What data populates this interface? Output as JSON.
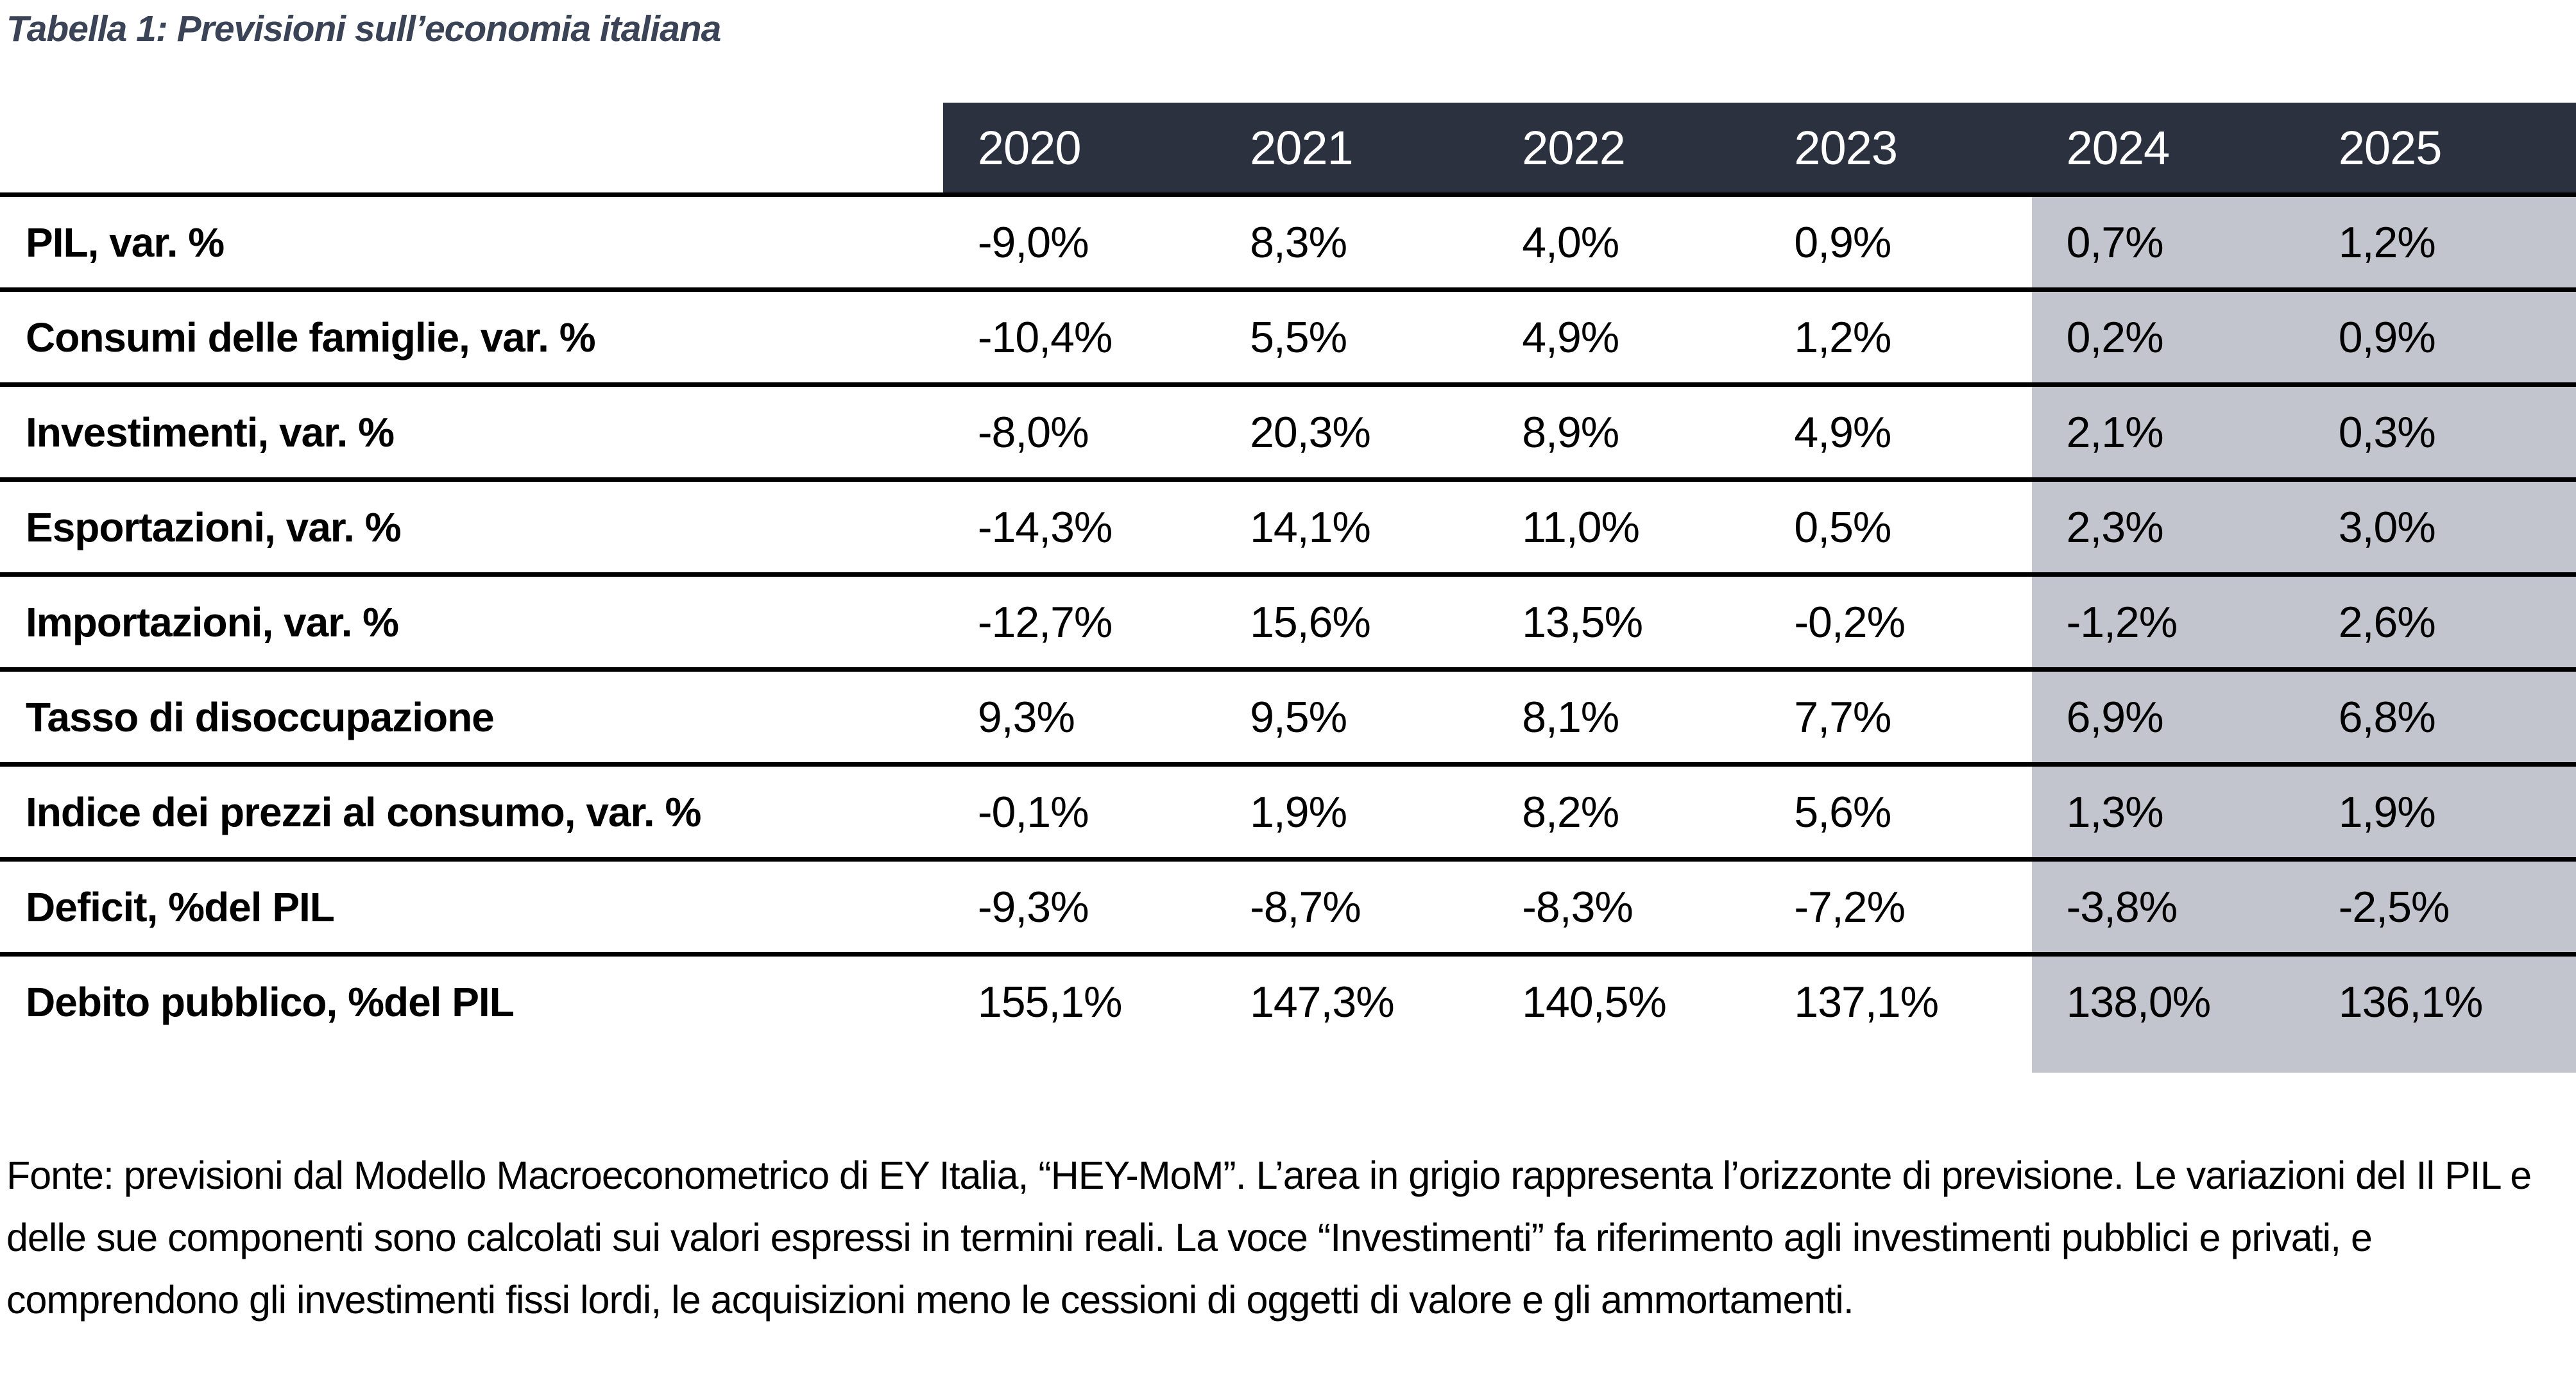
{
  "title": "Tabella 1: Previsioni sull’economia italiana",
  "colors": {
    "title_text": "#3b4456",
    "header_background": "#2c313f",
    "header_text": "#ffffff",
    "forecast_highlight": "#c2c4ce",
    "row_divider": "#000000"
  },
  "table": {
    "year_columns": [
      "2020",
      "2021",
      "2022",
      "2023",
      "2024",
      "2025"
    ],
    "forecast_years": [
      "2024",
      "2025"
    ],
    "rows": [
      {
        "label": "PIL, var. %",
        "values": [
          "-9,0%",
          "8,3%",
          "4,0%",
          "0,9%",
          "0,7%",
          "1,2%"
        ]
      },
      {
        "label": "Consumi delle famiglie, var. %",
        "values": [
          "-10,4%",
          "5,5%",
          "4,9%",
          "1,2%",
          "0,2%",
          "0,9%"
        ]
      },
      {
        "label": "Investimenti, var. %",
        "values": [
          "-8,0%",
          "20,3%",
          "8,9%",
          "4,9%",
          "2,1%",
          "0,3%"
        ]
      },
      {
        "label": "Esportazioni, var. %",
        "values": [
          "-14,3%",
          "14,1%",
          "11,0%",
          "0,5%",
          "2,3%",
          "3,0%"
        ]
      },
      {
        "label": "Importazioni, var. %",
        "values": [
          "-12,7%",
          "15,6%",
          "13,5%",
          "-0,2%",
          "-1,2%",
          "2,6%"
        ]
      },
      {
        "label": "Tasso di disoccupazione",
        "values": [
          "9,3%",
          "9,5%",
          "8,1%",
          "7,7%",
          "6,9%",
          "6,8%"
        ]
      },
      {
        "label": "Indice dei prezzi al consumo, var. %",
        "values": [
          "-0,1%",
          "1,9%",
          "8,2%",
          "5,6%",
          "1,3%",
          "1,9%"
        ]
      },
      {
        "label": "Deficit, %del PIL",
        "values": [
          "-9,3%",
          "-8,7%",
          "-8,3%",
          "-7,2%",
          "-3,8%",
          "-2,5%"
        ]
      },
      {
        "label": "Debito pubblico, %del PIL",
        "values": [
          "155,1%",
          "147,3%",
          "140,5%",
          "137,1%",
          "138,0%",
          "136,1%"
        ]
      }
    ]
  },
  "footnote": "Fonte: previsioni dal Modello Macroeconometrico di EY Italia, “HEY-MoM”. L’area in grigio rappresenta l’orizzonte di previsione. Le variazioni del Il PIL e delle sue componenti sono calcolati sui valori espressi in termini reali. La voce “Investimenti” fa riferimento agli investimenti pubblici e privati, e comprendono gli investimenti fissi lordi, le acquisizioni meno le cessioni di oggetti di valore e gli ammortamenti."
}
